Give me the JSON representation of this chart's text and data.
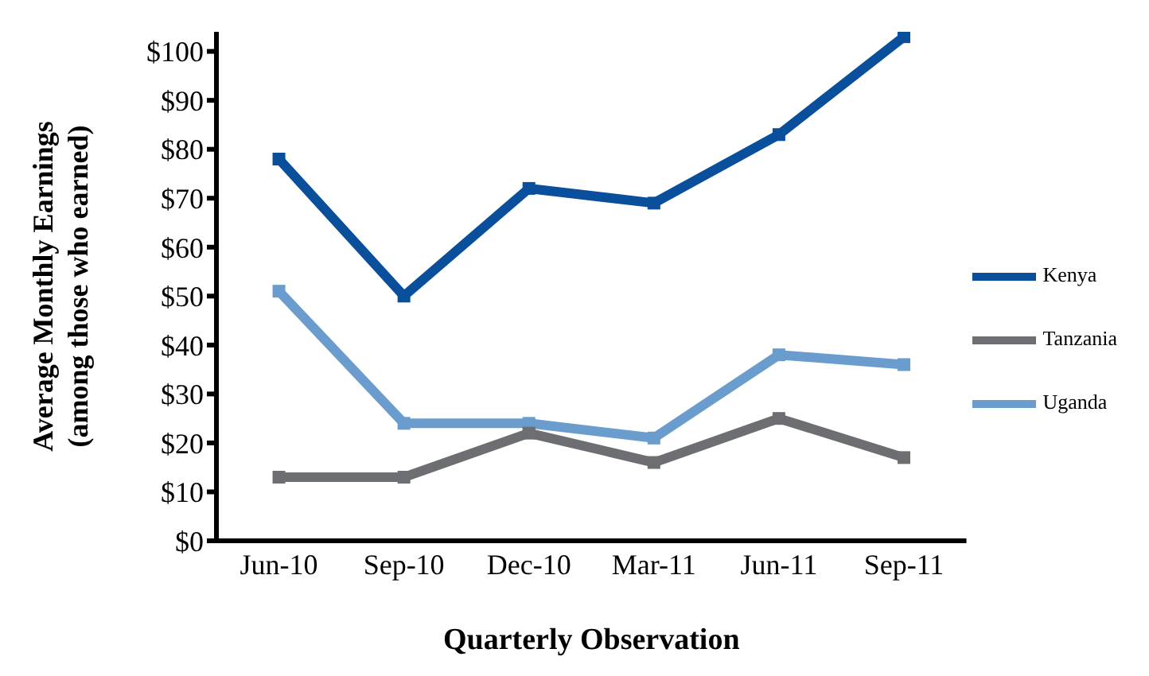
{
  "chart_data": {
    "type": "line",
    "xlabel": "Quarterly Observation",
    "ylabel": "Average Monthly Earnings\n(among those who earned)",
    "categories": [
      "Jun-10",
      "Sep-10",
      "Dec-10",
      "Mar-11",
      "Jun-11",
      "Sep-11"
    ],
    "series": [
      {
        "name": "Kenya",
        "color": "#0a4f9c",
        "values": [
          78,
          50,
          72,
          69,
          83,
          103
        ]
      },
      {
        "name": "Tanzania",
        "color": "#6d6e71",
        "values": [
          13,
          13,
          22,
          16,
          25,
          17
        ]
      },
      {
        "name": "Uganda",
        "color": "#6a9ccd",
        "values": [
          51,
          24,
          24,
          21,
          38,
          36
        ]
      }
    ],
    "ylim": [
      0,
      104
    ],
    "yticks": [
      {
        "value": 0,
        "label": "$0"
      },
      {
        "value": 10,
        "label": "$10"
      },
      {
        "value": 20,
        "label": "$20"
      },
      {
        "value": 30,
        "label": "$30"
      },
      {
        "value": 40,
        "label": "$40"
      },
      {
        "value": 50,
        "label": "$50"
      },
      {
        "value": 60,
        "label": "$60"
      },
      {
        "value": 70,
        "label": "$70"
      },
      {
        "value": 80,
        "label": "$80"
      },
      {
        "value": 90,
        "label": "$90"
      },
      {
        "value": 100,
        "label": "$100"
      }
    ],
    "grid": false,
    "legend": "right",
    "marker": "square",
    "line_style": "solid"
  }
}
